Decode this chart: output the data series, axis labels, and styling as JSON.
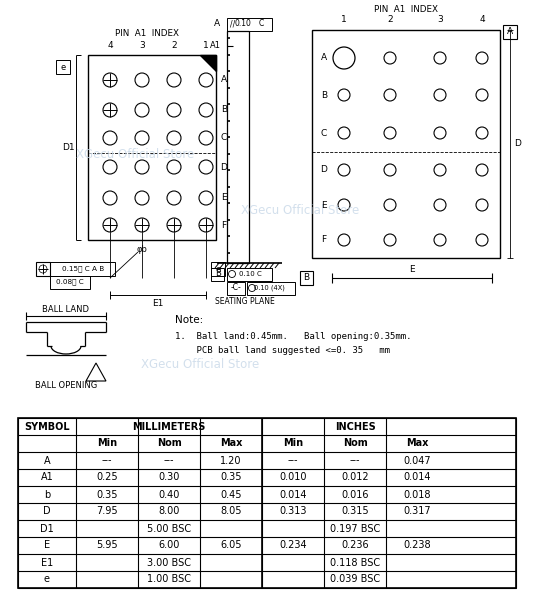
{
  "bg_color": "#ffffff",
  "watermark_text": "XGecu Official Store",
  "watermark_color": "#c8d8e8",
  "table_header1": "MILLIMETERS",
  "table_header2": "INCHES",
  "table_rows": [
    [
      "A",
      "---",
      "---",
      "1.20",
      "---",
      "---",
      "0.047"
    ],
    [
      "A1",
      "0.25",
      "0.30",
      "0.35",
      "0.010",
      "0.012",
      "0.014"
    ],
    [
      "b",
      "0.35",
      "0.40",
      "0.45",
      "0.014",
      "0.016",
      "0.018"
    ],
    [
      "D",
      "7.95",
      "8.00",
      "8.05",
      "0.313",
      "0.315",
      "0.317"
    ],
    [
      "D1",
      "5.00 BSC",
      "",
      "",
      "0.197 BSC",
      "",
      ""
    ],
    [
      "E",
      "5.95",
      "6.00",
      "6.05",
      "0.234",
      "0.236",
      "0.238"
    ],
    [
      "E1",
      "3.00 BSC",
      "",
      "",
      "0.118 BSC",
      "",
      ""
    ],
    [
      "e",
      "1.00 BSC",
      "",
      "",
      "0.039 BSC",
      "",
      ""
    ]
  ],
  "note_line1": "Note:",
  "note_line2": "1.  Ball land:0.45mm.   Ball opening:0.35mm.",
  "note_line3": "    PCB ball land suggested <=0. 35   mm",
  "ball_land_label": "BALL LAND",
  "ball_opening_label": "BALL OPENING",
  "pin_a1_index": "PIN  A1  INDEX",
  "seating_plane": "SEATING PLANE",
  "line_color": "#000000"
}
